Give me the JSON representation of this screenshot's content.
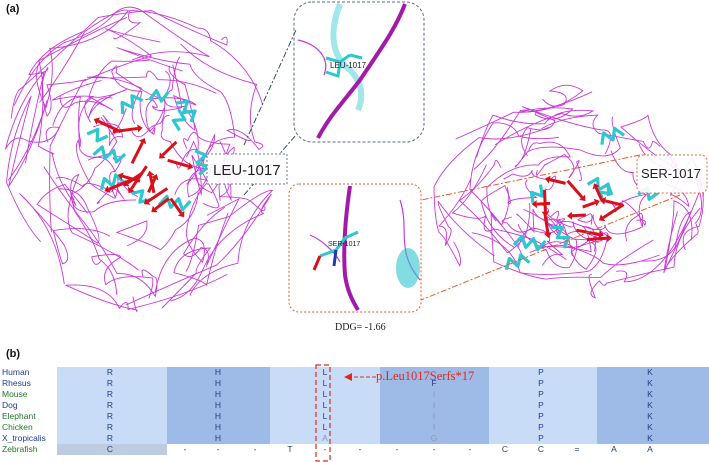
{
  "panels": {
    "a": "(a)",
    "b": "(b)"
  },
  "structure": {
    "wildtype_label": "LEU-1017",
    "wildtype_zoom_label": "LEU-1017",
    "mutant_label": "SER-1017",
    "mutant_zoom_label": "SER-1017",
    "ddg": "DDG= -1.66"
  },
  "colors": {
    "coil": "#c83ad6",
    "helix": "#2ec7cf",
    "sheet": "#d8101c",
    "wt_box": "#5a6b86",
    "mut_box": "#e35b2a",
    "bracket": "#e0281f",
    "conserved_band": "#9dbbe6",
    "row_bg": "#c9dcf7"
  },
  "alignment": {
    "species": [
      {
        "name": "Human",
        "color": "#1f3a93",
        "residues": [
          "R",
          "H",
          "L",
          "",
          "P",
          "K"
        ]
      },
      {
        "name": "Rhesus",
        "color": "#1f3a93",
        "residues": [
          "R",
          "H",
          "L",
          "F",
          "P",
          "K"
        ]
      },
      {
        "name": "Mouse",
        "color": "#1c7a2a",
        "residues": [
          "R",
          "H",
          "L",
          "I",
          "P",
          "K"
        ]
      },
      {
        "name": "Dog",
        "color": "#1f3a93",
        "residues": [
          "R",
          "H",
          "L",
          "I",
          "P",
          "K"
        ]
      },
      {
        "name": "Elephant",
        "color": "#1c7a2a",
        "residues": [
          "R",
          "H",
          "L",
          "I",
          "P",
          "K"
        ]
      },
      {
        "name": "Chicken",
        "color": "#1c7a2a",
        "residues": [
          "R",
          "H",
          "L",
          "I",
          "P",
          "K"
        ]
      },
      {
        "name": "X_tropicalis",
        "color": "#1f3a93",
        "residues": [
          "R",
          "H",
          "A",
          "G",
          "P",
          "K"
        ]
      },
      {
        "name": "Zebrafish",
        "color": "#1c7a2a",
        "residues": [
          "C",
          "-",
          "-",
          "-",
          "T",
          "-",
          "-",
          "-",
          "-",
          "-",
          "C",
          "C",
          "=",
          "A",
          "A"
        ]
      }
    ],
    "mutation_label": "p.Leu1017Serfs*17"
  }
}
